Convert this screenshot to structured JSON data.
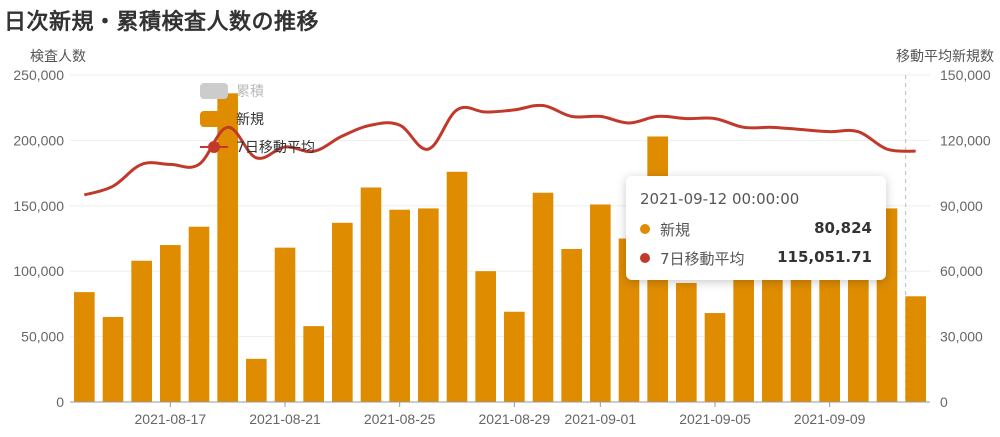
{
  "title": "日次新規・累積検査人数の推移",
  "colors": {
    "bar": "#df8c00",
    "line": "#c0392b",
    "legend_inactive": "#cccccc",
    "grid": "#eeeeee"
  },
  "legend": {
    "items": [
      {
        "label": "累積",
        "active": false,
        "icon": "rounded-rect-icon"
      },
      {
        "label": "新規",
        "active": true,
        "icon": "rounded-rect-icon"
      },
      {
        "label": "7日移動平均",
        "active": true,
        "icon": "line-dot-icon"
      }
    ]
  },
  "tooltip": {
    "title": "2021-09-12 00:00:00",
    "rows": [
      {
        "label": "新規",
        "value": "80,824"
      },
      {
        "label": "7日移動平均",
        "value": "115,051.71"
      }
    ]
  },
  "chart_data": {
    "type": "bar",
    "ylabel": "検査人数",
    "y2label": "移動平均新規数",
    "ylim": [
      0,
      250000
    ],
    "y2lim": [
      0,
      150000
    ],
    "yticks": [
      "0",
      "50,000",
      "100,000",
      "150,000",
      "200,000",
      "250,000"
    ],
    "y2ticks": [
      "0",
      "30,000",
      "60,000",
      "90,000",
      "120,000",
      "150,000"
    ],
    "x": [
      "2021-08-14",
      "2021-08-15",
      "2021-08-16",
      "2021-08-17",
      "2021-08-18",
      "2021-08-19",
      "2021-08-20",
      "2021-08-21",
      "2021-08-22",
      "2021-08-23",
      "2021-08-24",
      "2021-08-25",
      "2021-08-26",
      "2021-08-27",
      "2021-08-28",
      "2021-08-29",
      "2021-08-30",
      "2021-08-31",
      "2021-09-01",
      "2021-09-02",
      "2021-09-03",
      "2021-09-04",
      "2021-09-05",
      "2021-09-06",
      "2021-09-07",
      "2021-09-08",
      "2021-09-09",
      "2021-09-10",
      "2021-09-11",
      "2021-09-12"
    ],
    "xtick_labels": [
      {
        "date": "2021-08-17",
        "label": "2021-08-17"
      },
      {
        "date": "2021-08-21",
        "label": "2021-08-21"
      },
      {
        "date": "2021-08-25",
        "label": "2021-08-25"
      },
      {
        "date": "2021-08-29",
        "label": "2021-08-29"
      },
      {
        "date": "2021-09-01",
        "label": "2021-09-01"
      },
      {
        "date": "2021-09-05",
        "label": "2021-09-05"
      },
      {
        "date": "2021-09-09",
        "label": "2021-09-09"
      }
    ],
    "series": [
      {
        "name": "新規",
        "axis": "left",
        "kind": "bar",
        "values": [
          84000,
          65000,
          108000,
          120000,
          134000,
          236000,
          33000,
          118000,
          58000,
          137000,
          164000,
          147000,
          148000,
          176000,
          100000,
          69000,
          160000,
          117000,
          151000,
          125000,
          203000,
          91000,
          68000,
          108000,
          110000,
          120000,
          135000,
          140000,
          148000,
          80824
        ]
      },
      {
        "name": "7日移動平均",
        "axis": "right",
        "kind": "line",
        "values": [
          95000,
          99000,
          109000,
          109000,
          109000,
          126000,
          112000,
          117000,
          115000,
          122000,
          127000,
          127000,
          116000,
          134000,
          133000,
          134000,
          136000,
          131000,
          131000,
          128000,
          131000,
          130000,
          130000,
          126000,
          126000,
          125000,
          124000,
          124000,
          116000,
          115051.71
        ]
      }
    ],
    "cursor_date": "2021-09-12"
  }
}
